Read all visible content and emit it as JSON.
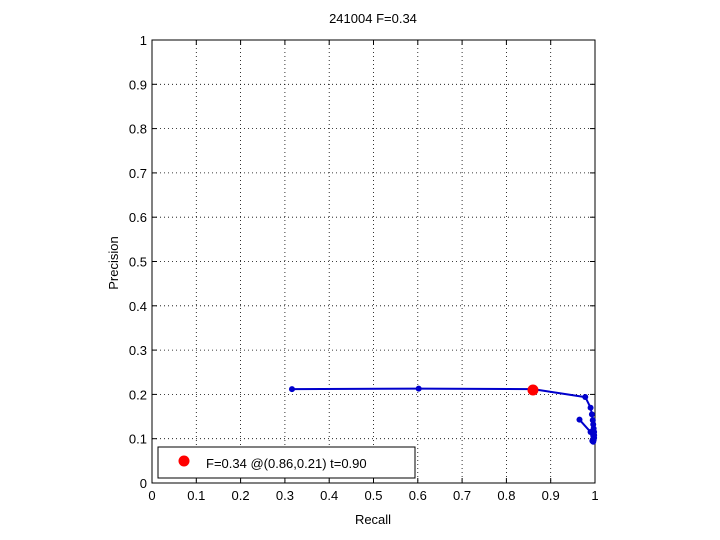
{
  "chart_data": {
    "type": "line",
    "title": "241004 F=0.34",
    "xlabel": "Recall",
    "ylabel": "Precision",
    "xlim": [
      0,
      1
    ],
    "ylim": [
      0,
      1
    ],
    "xticks": [
      0,
      0.1,
      0.2,
      0.3,
      0.4,
      0.5,
      0.6,
      0.7,
      0.8,
      0.9,
      1
    ],
    "yticks": [
      0,
      0.1,
      0.2,
      0.3,
      0.4,
      0.5,
      0.6,
      0.7,
      0.8,
      0.9,
      1
    ],
    "xtick_labels": [
      "0",
      "0.1",
      "0.2",
      "0.3",
      "0.4",
      "0.5",
      "0.6",
      "0.7",
      "0.8",
      "0.9",
      "1"
    ],
    "ytick_labels": [
      "0",
      "0.1",
      "0.2",
      "0.3",
      "0.4",
      "0.5",
      "0.6",
      "0.7",
      "0.8",
      "0.9",
      "1"
    ],
    "grid": true,
    "series": [
      {
        "color": "#0000cc",
        "x": [
          0.316,
          0.602,
          0.86,
          0.978,
          0.99,
          0.993,
          0.995,
          0.996,
          0.997,
          0.998,
          0.998,
          0.998,
          0.997,
          0.996,
          0.994,
          0.99,
          0.965
        ],
        "y": [
          0.212,
          0.213,
          0.212,
          0.194,
          0.17,
          0.155,
          0.142,
          0.132,
          0.123,
          0.115,
          0.108,
          0.102,
          0.097,
          0.093,
          0.095,
          0.115,
          0.143
        ]
      }
    ],
    "best_point": {
      "x": 0.86,
      "y": 0.21,
      "color": "#ff0000"
    },
    "legend": {
      "label": "F=0.34 @(0.86,0.21) t=0.90",
      "position": "bottom-left"
    }
  }
}
